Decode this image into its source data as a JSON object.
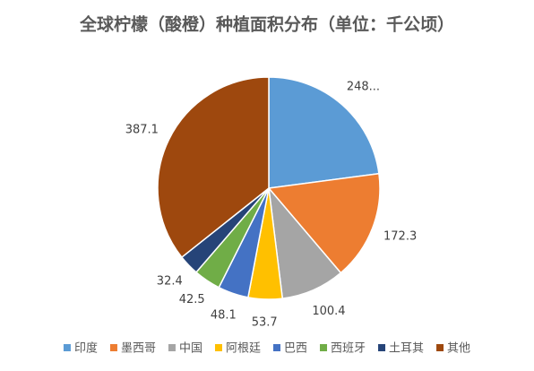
{
  "chart_data": {
    "type": "pie",
    "title": "全球柠檬（酸橙）种植面积分布（单位：千公顷）",
    "categories": [
      "印度",
      "墨西哥",
      "中国",
      "阿根廷",
      "巴西",
      "西班牙",
      "土耳其",
      "其他"
    ],
    "values": [
      248.5,
      172.3,
      100.4,
      53.7,
      48.1,
      42.5,
      32.4,
      387.1
    ],
    "value_labels": [
      "248...",
      "172.3",
      "100.4",
      "53.7",
      "48.1",
      "42.5",
      "32.4",
      "387.1"
    ],
    "colors": [
      "#5b9bd5",
      "#ed7d31",
      "#a5a5a5",
      "#ffc000",
      "#4472c4",
      "#70ad47",
      "#264478",
      "#9e480e"
    ],
    "legend": "bottom"
  }
}
